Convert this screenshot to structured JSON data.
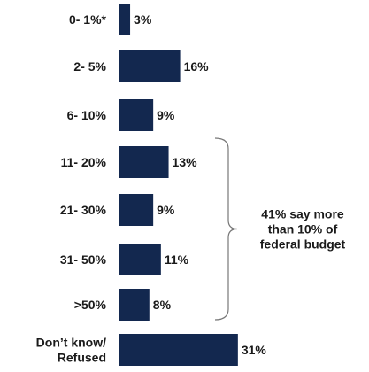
{
  "chart_data": {
    "type": "bar",
    "orientation": "horizontal",
    "categories": [
      "0- 1%*",
      "2- 5%",
      "6- 10%",
      "11- 20%",
      "21- 30%",
      "31- 50%",
      ">50%",
      "Don’t know/ Refused"
    ],
    "category_lines": [
      [
        "0- 1%*"
      ],
      [
        "2- 5%"
      ],
      [
        "6- 10%"
      ],
      [
        "11- 20%"
      ],
      [
        "21- 30%"
      ],
      [
        "31- 50%"
      ],
      [
        ">50%"
      ],
      [
        "Don’t know/",
        "Refused"
      ]
    ],
    "values": [
      3,
      16,
      9,
      13,
      9,
      11,
      8,
      31
    ],
    "value_labels": [
      "3%",
      "16%",
      "9%",
      "13%",
      "9%",
      "11%",
      "8%",
      "31%"
    ],
    "bar_color": "#13284f",
    "grid": false,
    "annotation": {
      "lines": [
        "41% say more",
        "than 10% of",
        "federal budget"
      ],
      "bracket_from_category": 3,
      "bracket_to_category": 6
    }
  }
}
